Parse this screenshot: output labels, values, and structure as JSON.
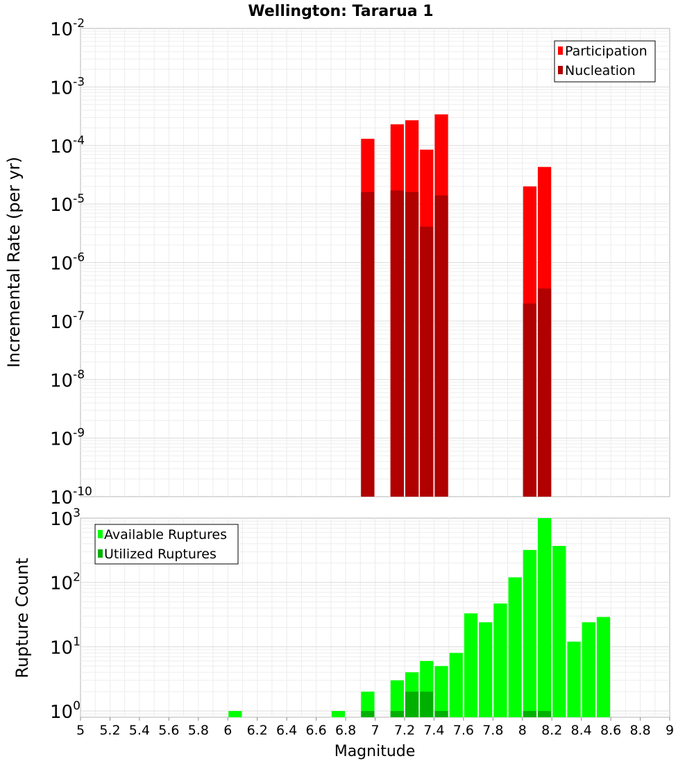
{
  "chart_data": [
    {
      "type": "bar",
      "title": "Wellington: Tararua 1",
      "ylabel": "Incremental Rate (per yr)",
      "xlabel": "",
      "yscale": "log",
      "ylim": [
        1e-10,
        0.01
      ],
      "xlim": [
        5,
        9
      ],
      "bar_width": 0.1,
      "x": [
        6.95,
        7.15,
        7.25,
        7.35,
        7.45,
        8.05,
        8.15
      ],
      "series": [
        {
          "name": "Participation",
          "color": "#ff0000",
          "values": [
            0.00013,
            0.00023,
            0.00027,
            8.5e-05,
            0.00034,
            2e-05,
            4.3e-05
          ]
        },
        {
          "name": "Nucleation",
          "color": "#b00000",
          "values": [
            1.6e-05,
            1.7e-05,
            1.6e-05,
            4.1e-06,
            1.4e-05,
            2e-07,
            3.6e-07
          ]
        }
      ],
      "ytick_labels": [
        {
          "base": "10",
          "exp": "-10"
        },
        {
          "base": "10",
          "exp": "-9"
        },
        {
          "base": "10",
          "exp": "-8"
        },
        {
          "base": "10",
          "exp": "-7"
        },
        {
          "base": "10",
          "exp": "-6"
        },
        {
          "base": "10",
          "exp": "-5"
        },
        {
          "base": "10",
          "exp": "-4"
        },
        {
          "base": "10",
          "exp": "-3"
        },
        {
          "base": "10",
          "exp": "-2"
        }
      ],
      "legend_position": "top-right",
      "grid": true
    },
    {
      "type": "bar",
      "title": "",
      "ylabel": "Rupture Count",
      "xlabel": "Magnitude",
      "yscale": "log",
      "ylim": [
        0.8,
        1000
      ],
      "xlim": [
        5,
        9
      ],
      "bar_width": 0.1,
      "x_ticks": [
        "5",
        "5.2",
        "5.4",
        "5.6",
        "5.8",
        "6",
        "6.2",
        "6.4",
        "6.6",
        "6.8",
        "7",
        "7.2",
        "7.4",
        "7.6",
        "7.8",
        "8",
        "8.2",
        "8.4",
        "8.6",
        "8.8",
        "9"
      ],
      "ytick_labels": [
        {
          "base": "10",
          "exp": "0"
        },
        {
          "base": "10",
          "exp": "1"
        },
        {
          "base": "10",
          "exp": "2"
        },
        {
          "base": "10",
          "exp": "3"
        }
      ],
      "series": [
        {
          "name": "Available Ruptures",
          "color": "#00ff00",
          "x": [
            6.05,
            6.75,
            6.95,
            7.15,
            7.25,
            7.35,
            7.45,
            7.55,
            7.65,
            7.75,
            7.85,
            7.95,
            8.05,
            8.15,
            8.25,
            8.35,
            8.45,
            8.55
          ],
          "values": [
            1,
            1,
            2,
            3,
            4,
            6,
            5,
            8,
            33,
            24,
            47,
            120,
            320,
            1000,
            370,
            12,
            24,
            29
          ]
        },
        {
          "name": "Utilized Ruptures",
          "color": "#00b000",
          "x": [
            6.95,
            7.15,
            7.25,
            7.35,
            7.45,
            8.05,
            8.15
          ],
          "values": [
            1,
            1,
            2,
            2,
            1,
            1,
            1
          ]
        }
      ],
      "legend_position": "top-left",
      "grid": true
    }
  ]
}
